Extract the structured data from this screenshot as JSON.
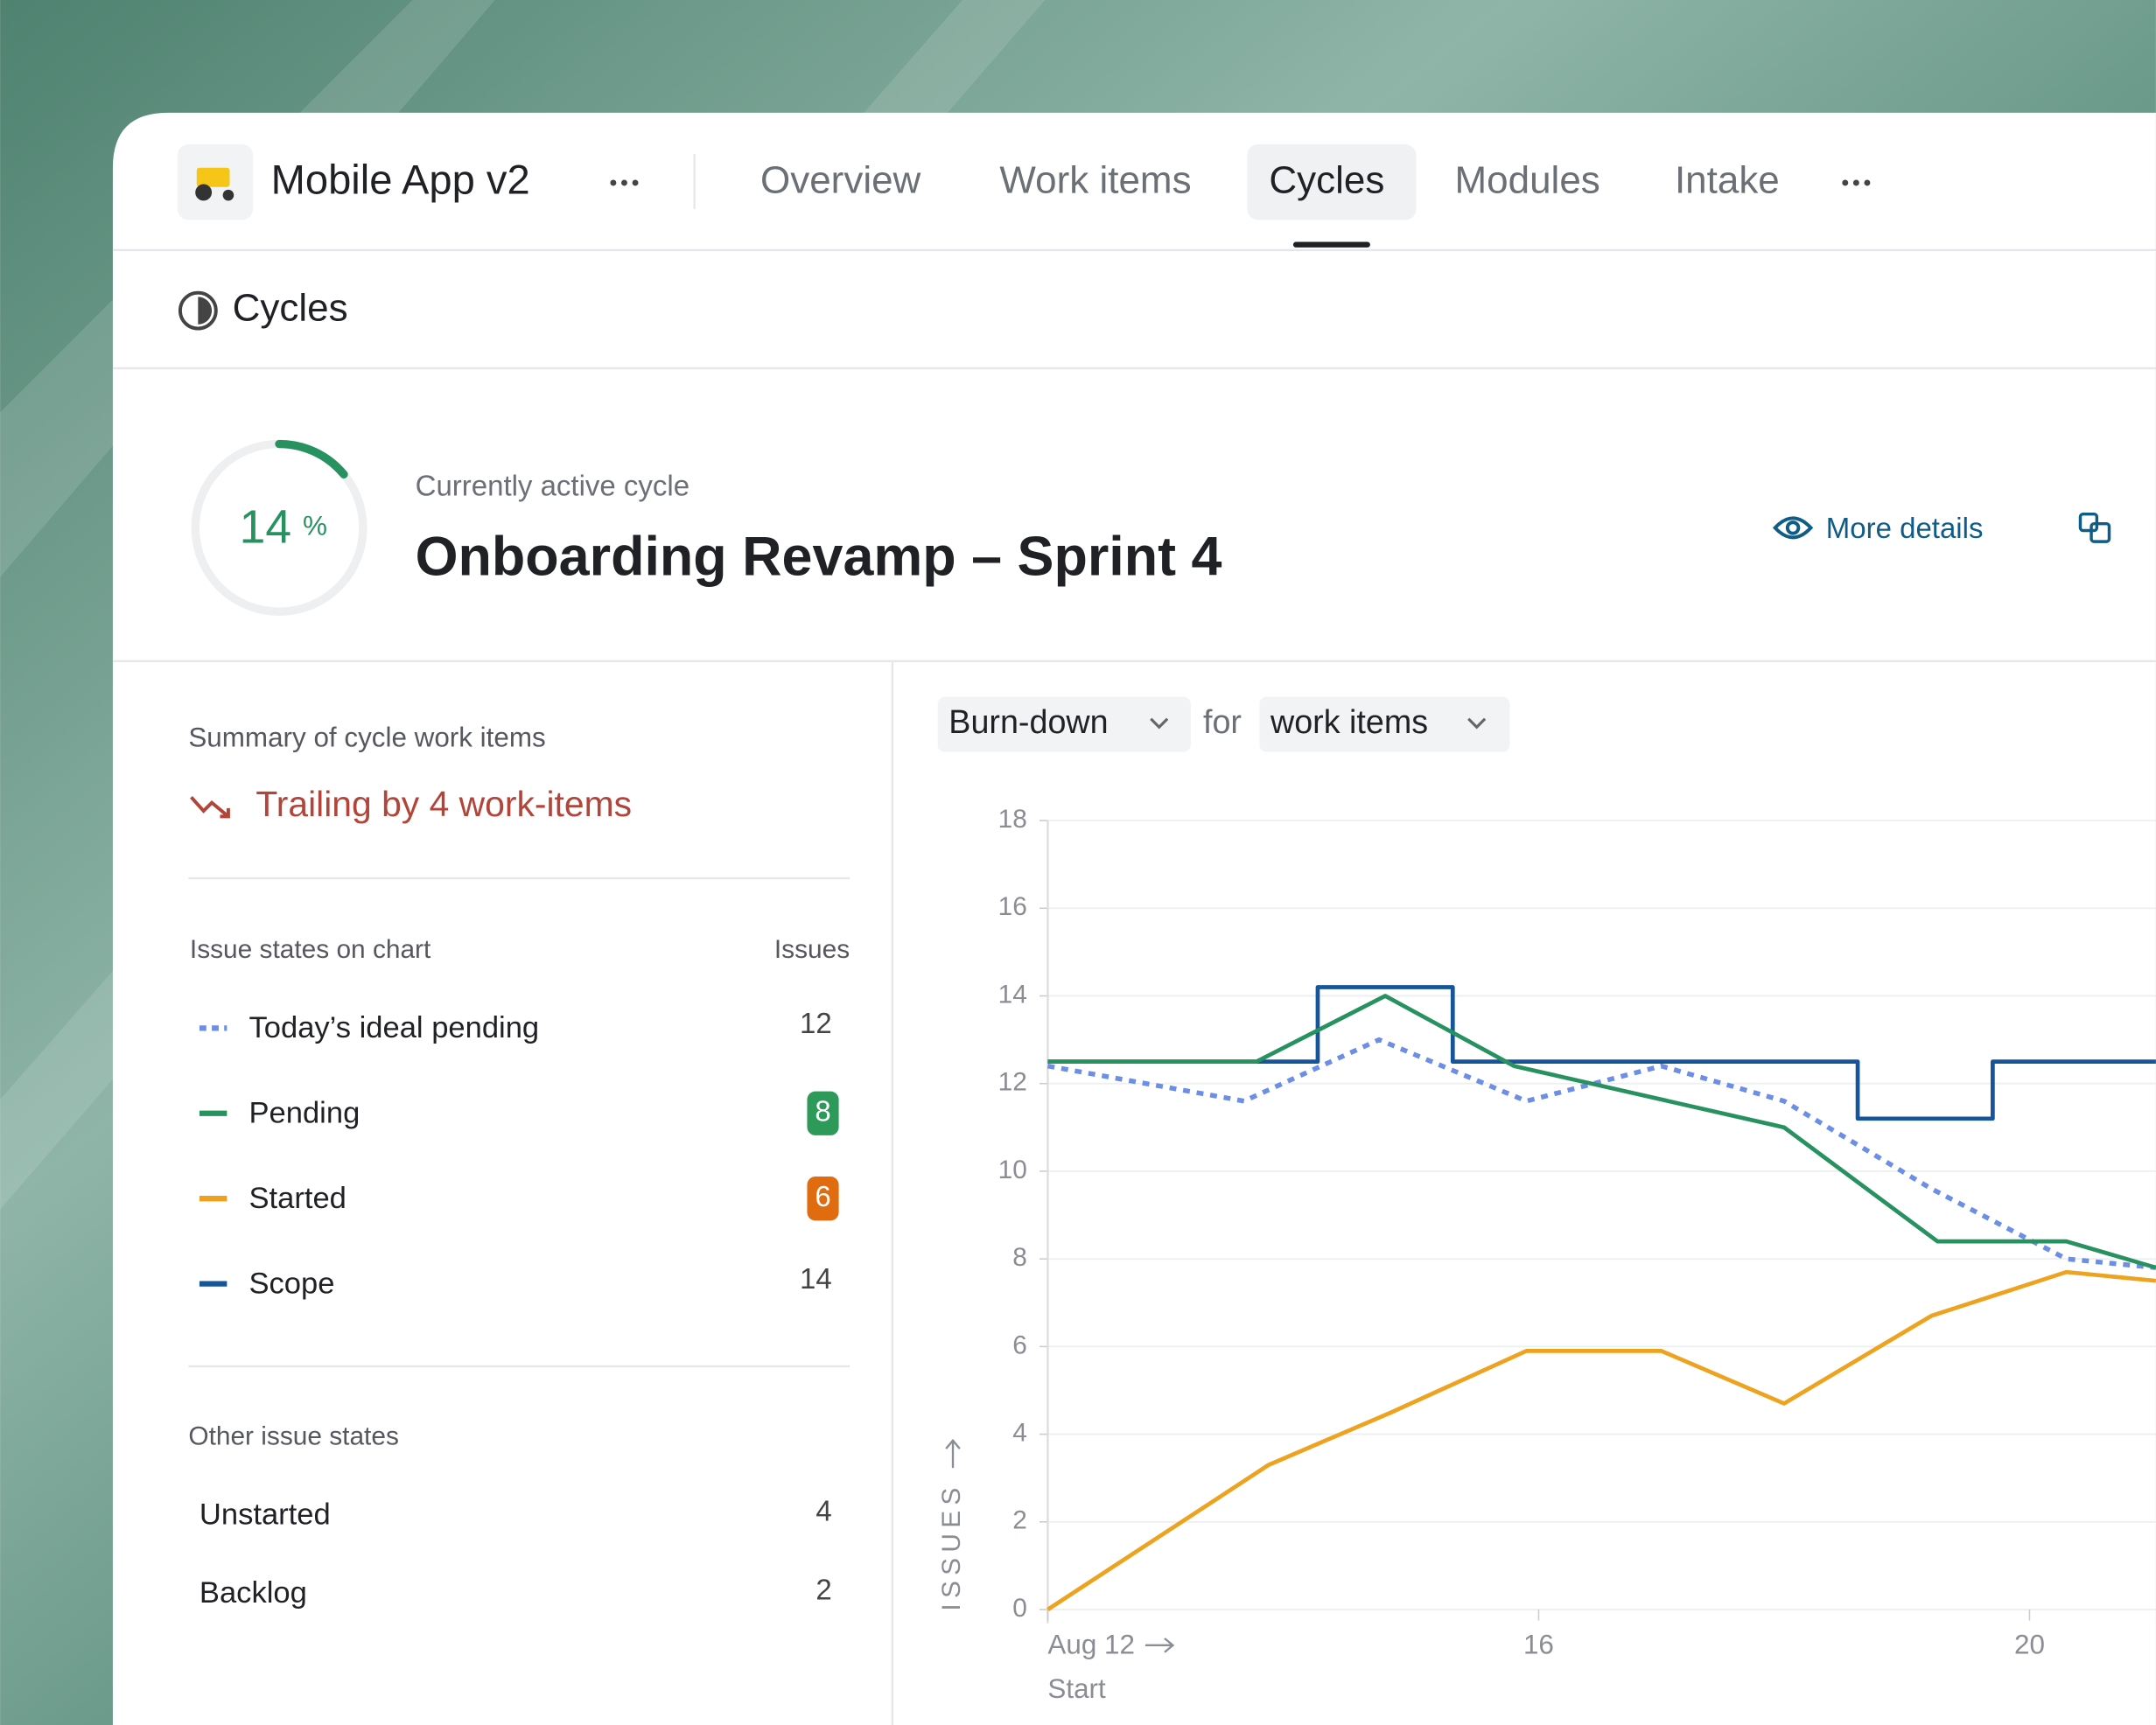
{
  "header": {
    "project": "Mobile App v2",
    "tabs": [
      "Overview",
      "Work items",
      "Cycles",
      "Modules",
      "Intake"
    ],
    "active_tab": 2
  },
  "breadcrumb": "Cycles",
  "cycle": {
    "progress": 14,
    "progress_unit": "%",
    "label": "Currently active cycle",
    "name": "Onboarding Revamp – Sprint 4",
    "more_details": "More details"
  },
  "summary": {
    "title": "Summary of cycle work items",
    "status": "Trailing by 4 work-items",
    "chart_states_header": "Issue states on chart",
    "count_header": "Issues",
    "chart_states": [
      {
        "name": "Today’s ideal pending",
        "count": 12,
        "color": "#6d8ee6",
        "dashed": true
      },
      {
        "name": "Pending",
        "count": 8,
        "color": "#279160",
        "badge": "#2e9a5a"
      },
      {
        "name": "Started",
        "count": 6,
        "color": "#f0a01e",
        "badge": "#e06c0f"
      },
      {
        "name": "Scope",
        "count": 14,
        "color": "#17559b"
      }
    ],
    "other_header": "Other issue states",
    "other_states": [
      {
        "name": "Unstarted",
        "count": 4
      },
      {
        "name": "Backlog",
        "count": 2
      }
    ]
  },
  "chart_data": {
    "type": "line",
    "controls": {
      "metric": "Burn-down",
      "connector": "for",
      "unit": "work items"
    },
    "ylabel": "ISSUES",
    "x_start_label": "Start",
    "xlim": [
      12,
      21.03
    ],
    "xticks": [
      {
        "value": 12,
        "label": "Aug 12"
      },
      16,
      20
    ],
    "ylim": [
      0,
      18
    ],
    "yticks": [
      0,
      2,
      4,
      6,
      8,
      10,
      12,
      14,
      16,
      18
    ],
    "grid": true,
    "series": [
      {
        "color": "#17559b",
        "dashed": false,
        "x": [
          12,
          14.2,
          14.2,
          15.3,
          15.3,
          18.6,
          18.6,
          19.7,
          19.7,
          21.03
        ],
        "values": [
          12.5,
          12.5,
          14.2,
          14.2,
          12.5,
          12.5,
          11.2,
          11.2,
          12.5,
          12.5
        ]
      },
      {
        "color": "#6d8ee6",
        "dashed": true,
        "x": [
          12,
          13.6,
          14.7,
          15.9,
          17,
          18,
          19.2,
          20.3,
          21.03
        ],
        "values": [
          12.4,
          11.6,
          13.0,
          11.6,
          12.4,
          11.6,
          9.6,
          8.0,
          7.8
        ]
      },
      {
        "color": "#279160",
        "dashed": false,
        "x": [
          12,
          13.7,
          14.75,
          15.8,
          18,
          19.25,
          20.3,
          21.03
        ],
        "values": [
          12.5,
          12.5,
          14.0,
          12.4,
          11.0,
          8.4,
          8.4,
          7.8
        ]
      },
      {
        "color": "#eea320",
        "dashed": false,
        "x": [
          12,
          13.8,
          14.8,
          15.9,
          17,
          18,
          19.2,
          20.3,
          21.03
        ],
        "values": [
          0,
          3.3,
          4.5,
          5.9,
          5.9,
          4.7,
          6.7,
          7.7,
          7.5
        ]
      }
    ]
  }
}
